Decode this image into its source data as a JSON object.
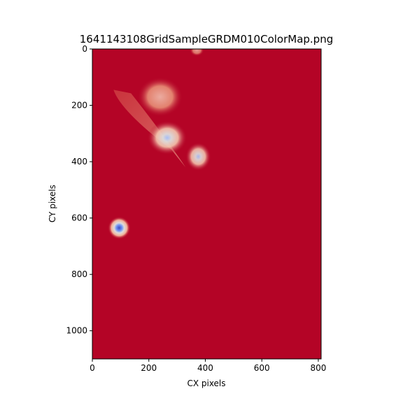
{
  "chart_data": {
    "type": "heatmap",
    "title": "1641143108GridSampleGRDM010ColorMap.png",
    "xlabel": "CX pixels",
    "ylabel": "CY pixels",
    "xlim": [
      0,
      810
    ],
    "ylim": [
      1100,
      0
    ],
    "x_ticks": [
      0,
      200,
      400,
      600,
      800
    ],
    "y_ticks": [
      0,
      200,
      400,
      600,
      800,
      1000
    ],
    "colormap": "coolwarm_r",
    "background_color": "#b40426",
    "colorbar": false,
    "grid": false,
    "features": [
      {
        "shape": "blob",
        "cx": 370,
        "cy": 5,
        "rx": 25,
        "ry": 20,
        "intensity": 0.3
      },
      {
        "shape": "blob",
        "cx": 240,
        "cy": 170,
        "rx": 80,
        "ry": 70,
        "intensity": 0.55
      },
      {
        "shape": "streak",
        "x1": 75,
        "y1": 145,
        "x2": 330,
        "y2": 420,
        "intensity": 0.35
      },
      {
        "shape": "blob",
        "cx": 265,
        "cy": 315,
        "rx": 70,
        "ry": 60,
        "intensity": 0.9
      },
      {
        "shape": "blob",
        "cx": 375,
        "cy": 382,
        "rx": 45,
        "ry": 50,
        "intensity": 0.8
      },
      {
        "shape": "blob",
        "cx": 95,
        "cy": 635,
        "rx": 40,
        "ry": 40,
        "intensity": 1.0
      }
    ]
  }
}
